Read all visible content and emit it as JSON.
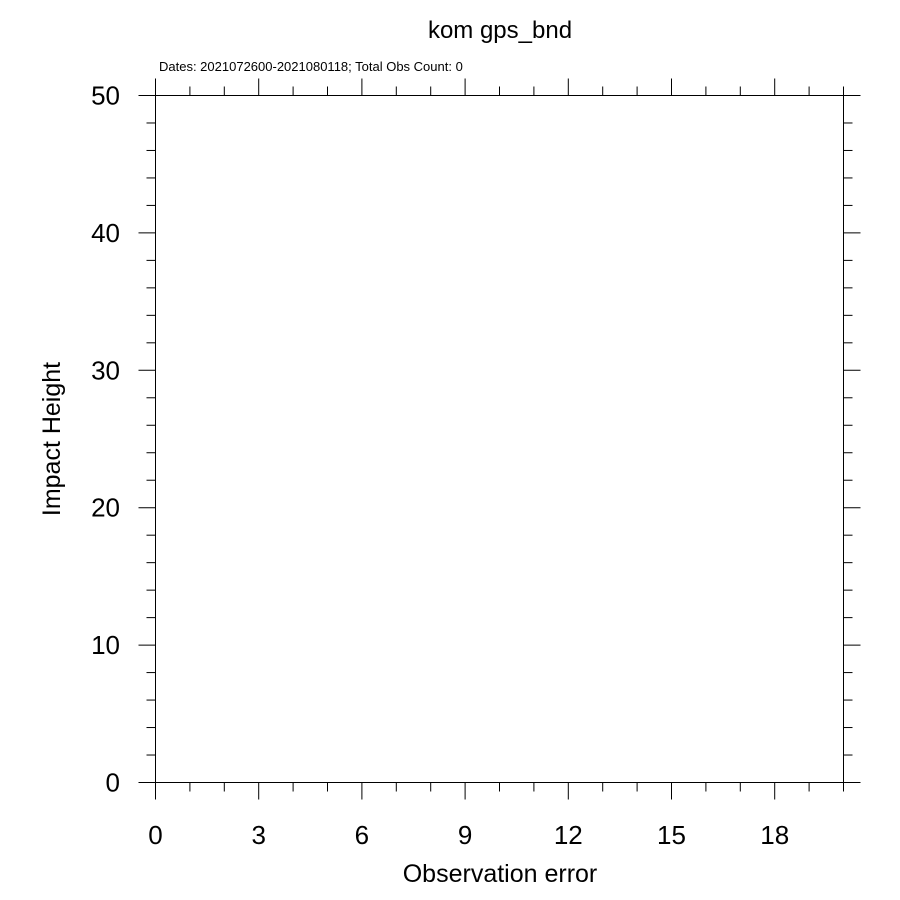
{
  "chart_data": {
    "type": "scatter",
    "title": "kom gps_bnd",
    "subtitle": "Dates: 2021072600-2021080118; Total Obs Count: 0",
    "xlabel": "Observation error",
    "ylabel": "Impact Height",
    "xlim": [
      0,
      20
    ],
    "ylim": [
      0,
      50
    ],
    "x_major_ticks": [
      0,
      3,
      6,
      9,
      12,
      15,
      18
    ],
    "x_minor_step": 1,
    "y_major_ticks": [
      0,
      10,
      20,
      30,
      40,
      50
    ],
    "y_minor_step": 2,
    "x_tick_labels": [
      "0",
      "3",
      "6",
      "9",
      "12",
      "15",
      "18"
    ],
    "y_tick_labels": [
      "0",
      "10",
      "20",
      "30",
      "40",
      "50"
    ],
    "grid": false,
    "series": [
      {
        "x": [],
        "y": []
      }
    ]
  }
}
